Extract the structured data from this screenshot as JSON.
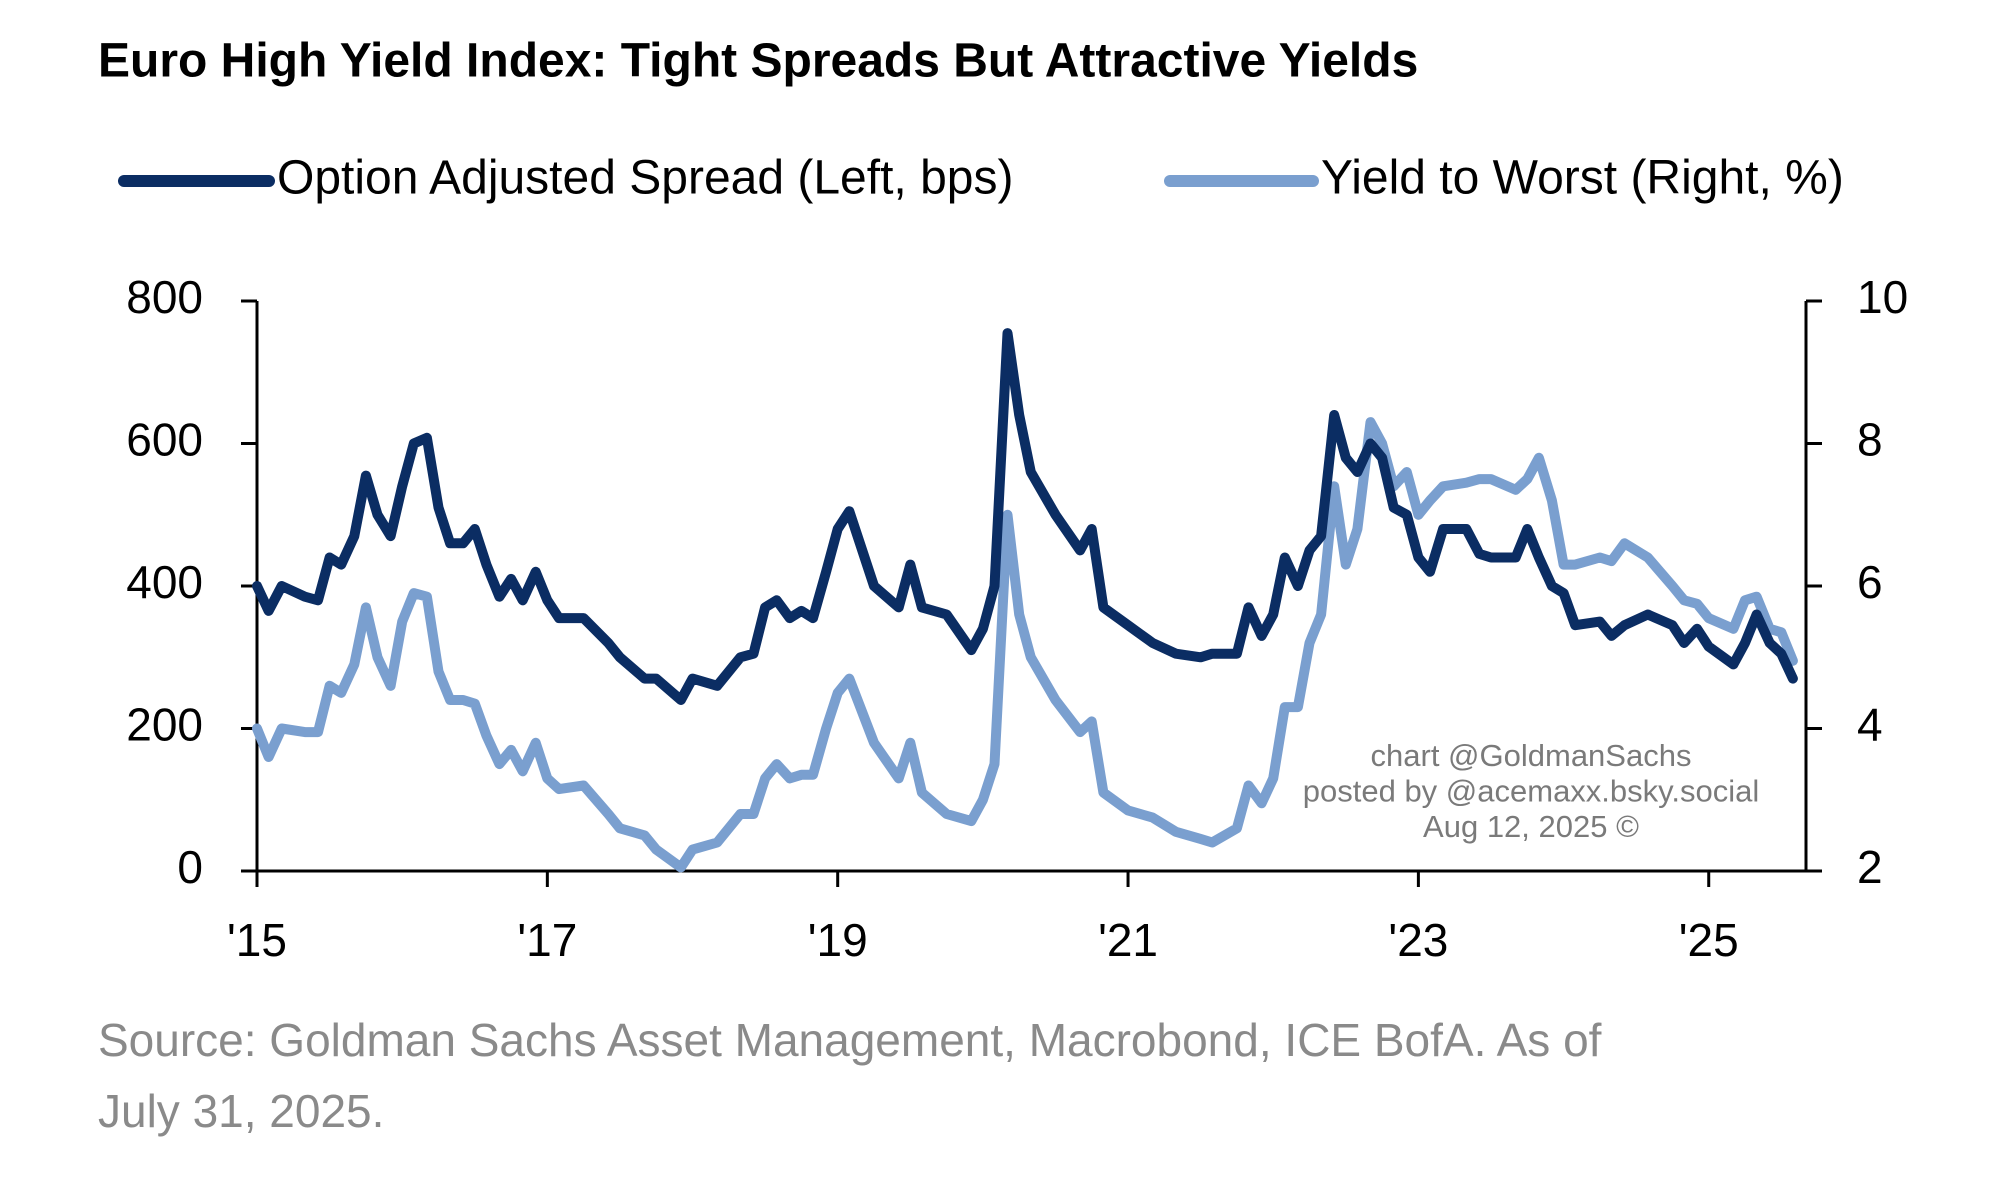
{
  "chart_data": {
    "type": "line",
    "title": "Euro High Yield Index: Tight Spreads But Attractive Yields",
    "source": [
      "Source: Goldman Sachs Asset Management, Macrobond, ICE BofA. As of",
      "July 31, 2025."
    ],
    "annotations": [
      "chart @GoldmanSachs",
      "posted by @acemaxx.bsky.social",
      "Aug 12, 2025 ©"
    ],
    "x": [
      2015,
      2015.08,
      2015.17,
      2015.33,
      2015.42,
      2015.5,
      2015.58,
      2015.67,
      2015.75,
      2015.83,
      2015.92,
      2016,
      2016.08,
      2016.17,
      2016.25,
      2016.33,
      2016.42,
      2016.5,
      2016.58,
      2016.67,
      2016.75,
      2016.83,
      2016.92,
      2017,
      2017.08,
      2017.25,
      2017.42,
      2017.5,
      2017.67,
      2017.75,
      2017.92,
      2018,
      2018.17,
      2018.33,
      2018.42,
      2018.5,
      2018.58,
      2018.67,
      2018.75,
      2018.83,
      2018.92,
      2019,
      2019.08,
      2019.25,
      2019.42,
      2019.5,
      2019.58,
      2019.75,
      2019.92,
      2020,
      2020.08,
      2020.17,
      2020.25,
      2020.33,
      2020.5,
      2020.67,
      2020.75,
      2020.83,
      2021,
      2021.17,
      2021.33,
      2021.5,
      2021.58,
      2021.75,
      2021.83,
      2021.92,
      2022,
      2022.08,
      2022.17,
      2022.25,
      2022.33,
      2022.42,
      2022.5,
      2022.58,
      2022.67,
      2022.75,
      2022.83,
      2022.92,
      2023,
      2023.08,
      2023.17,
      2023.33,
      2023.42,
      2023.5,
      2023.67,
      2023.75,
      2023.83,
      2023.92,
      2024,
      2024.08,
      2024.25,
      2024.33,
      2024.42,
      2024.58,
      2024.75,
      2024.83,
      2024.92,
      2025,
      2025.17,
      2025.25,
      2025.33,
      2025.42,
      2025.5,
      2025.58
    ],
    "series": [
      {
        "name": "Option Adjusted Spread (Left, bps)",
        "color": "#0b2d63",
        "axis": "y",
        "values": [
          400,
          365,
          400,
          385,
          380,
          440,
          430,
          470,
          555,
          500,
          470,
          540,
          600,
          608,
          510,
          460,
          460,
          480,
          430,
          385,
          410,
          380,
          420,
          380,
          355,
          355,
          320,
          300,
          270,
          270,
          240,
          270,
          260,
          300,
          305,
          370,
          380,
          355,
          365,
          355,
          420,
          480,
          505,
          400,
          370,
          430,
          370,
          360,
          310,
          340,
          400,
          755,
          640,
          560,
          500,
          450,
          480,
          370,
          345,
          320,
          305,
          300,
          305,
          305,
          370,
          330,
          360,
          440,
          400,
          450,
          470,
          640,
          580,
          560,
          600,
          580,
          510,
          500,
          440,
          420,
          480,
          480,
          445,
          440,
          440,
          480,
          440,
          400,
          390,
          345,
          350,
          330,
          345,
          360,
          345,
          320,
          340,
          315,
          290,
          320,
          360,
          320,
          305,
          270
        ]
      },
      {
        "name": "Yield to Worst (Right, %)",
        "color": "#7a9fcf",
        "axis": "y2",
        "values": [
          4.0,
          3.6,
          4.0,
          3.95,
          3.95,
          4.6,
          4.5,
          4.9,
          5.7,
          5.0,
          4.6,
          5.5,
          5.9,
          5.85,
          4.8,
          4.4,
          4.4,
          4.35,
          3.9,
          3.5,
          3.7,
          3.4,
          3.8,
          3.3,
          3.15,
          3.2,
          2.8,
          2.6,
          2.5,
          2.3,
          2.05,
          2.3,
          2.4,
          2.8,
          2.8,
          3.3,
          3.5,
          3.3,
          3.35,
          3.35,
          4.0,
          4.5,
          4.7,
          3.8,
          3.3,
          3.8,
          3.1,
          2.8,
          2.7,
          3.0,
          3.5,
          7.0,
          5.6,
          5.0,
          4.4,
          3.95,
          4.1,
          3.1,
          2.85,
          2.75,
          2.55,
          2.45,
          2.4,
          2.6,
          3.2,
          2.95,
          3.3,
          4.3,
          4.3,
          5.2,
          5.6,
          7.4,
          6.3,
          6.8,
          8.3,
          8.0,
          7.4,
          7.6,
          7.0,
          7.2,
          7.4,
          7.45,
          7.5,
          7.5,
          7.35,
          7.5,
          7.8,
          7.2,
          6.3,
          6.3,
          6.4,
          6.35,
          6.6,
          6.4,
          6.0,
          5.8,
          5.75,
          5.55,
          5.4,
          5.8,
          5.85,
          5.4,
          5.35,
          4.95
        ]
      }
    ],
    "xlim": [
      2015,
      2025.67
    ],
    "xticks": [
      {
        "value": 2015,
        "label": "'15"
      },
      {
        "value": 2017,
        "label": "'17"
      },
      {
        "value": 2019,
        "label": "'19"
      },
      {
        "value": 2021,
        "label": "'21"
      },
      {
        "value": 2023,
        "label": "'23"
      },
      {
        "value": 2025,
        "label": "'25"
      }
    ],
    "ylim": [
      0,
      800
    ],
    "yticks": [
      0,
      200,
      400,
      600,
      800
    ],
    "y2lim": [
      2,
      10
    ],
    "y2ticks": [
      2,
      4,
      6,
      8,
      10
    ],
    "grid": false,
    "legend": "top"
  }
}
